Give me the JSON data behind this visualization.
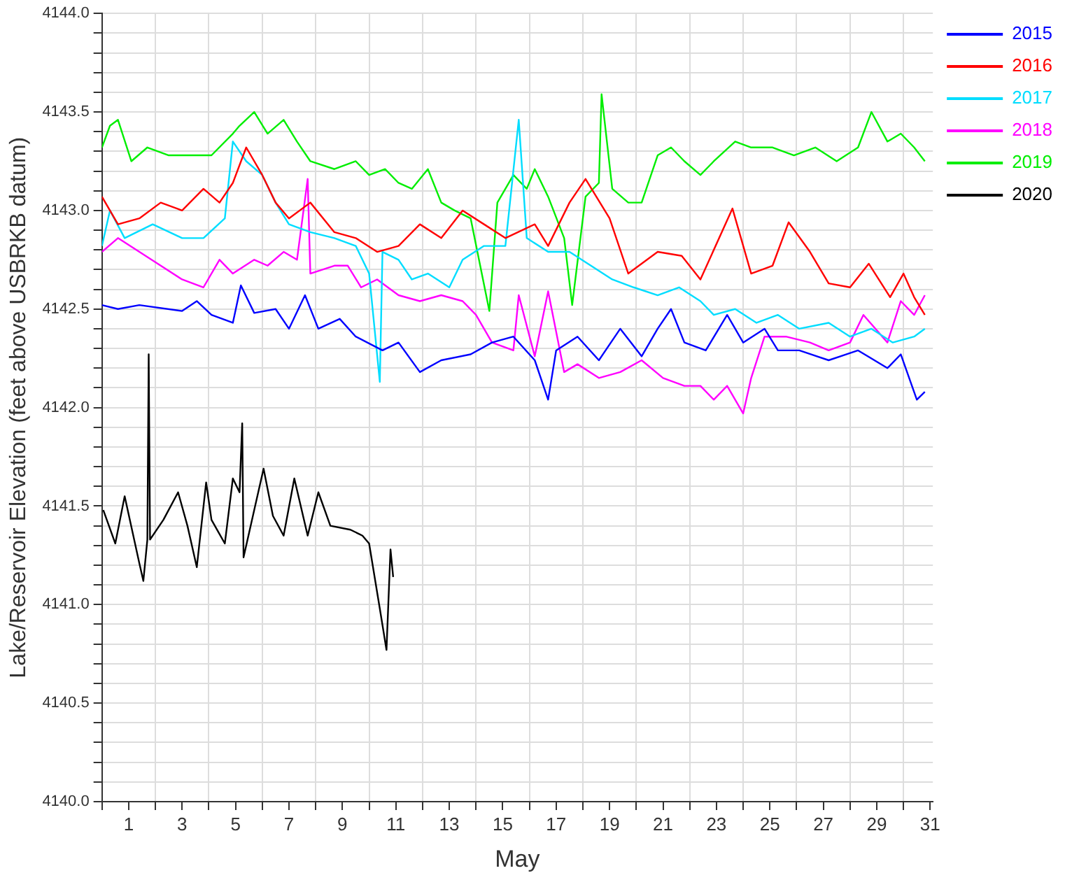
{
  "chart_data": {
    "type": "line",
    "xlabel": "May",
    "ylabel": "Lake/Reservoir Elevation (feet above USBRKB datum)",
    "xlim": [
      0,
      31.1
    ],
    "xticks": [
      {
        "value": 0,
        "label": null
      },
      1,
      {
        "value": 2,
        "label": null
      },
      3,
      {
        "value": 4,
        "label": null
      },
      5,
      {
        "value": 6,
        "label": null
      },
      7,
      {
        "value": 8,
        "label": null
      },
      9,
      {
        "value": 10,
        "label": null
      },
      11,
      {
        "value": 12,
        "label": null
      },
      13,
      {
        "value": 14,
        "label": null
      },
      15,
      {
        "value": 16,
        "label": null
      },
      17,
      {
        "value": 18,
        "label": null
      },
      19,
      {
        "value": 20,
        "label": null
      },
      21,
      {
        "value": 22,
        "label": null
      },
      23,
      {
        "value": 24,
        "label": null
      },
      25,
      {
        "value": 26,
        "label": null
      },
      27,
      {
        "value": 28,
        "label": null
      },
      29,
      {
        "value": 30,
        "label": null
      },
      31
    ],
    "ylim": [
      4140,
      4144
    ],
    "yticks": [
      {
        "value": 4140,
        "label": "4140.0"
      },
      {
        "value": 4140.1,
        "label": null
      },
      {
        "value": 4140.2,
        "label": null
      },
      {
        "value": 4140.3,
        "label": null
      },
      {
        "value": 4140.4,
        "label": null
      },
      {
        "value": 4140.5,
        "label": "4140.5"
      },
      {
        "value": 4140.6,
        "label": null
      },
      {
        "value": 4140.7,
        "label": null
      },
      {
        "value": 4140.8,
        "label": null
      },
      {
        "value": 4140.9,
        "label": null
      },
      {
        "value": 4141,
        "label": "4141.0"
      },
      {
        "value": 4141.1,
        "label": null
      },
      {
        "value": 4141.2,
        "label": null
      },
      {
        "value": 4141.3,
        "label": null
      },
      {
        "value": 4141.4,
        "label": null
      },
      {
        "value": 4141.5,
        "label": "4141.5"
      },
      {
        "value": 4141.6,
        "label": null
      },
      {
        "value": 4141.7,
        "label": null
      },
      {
        "value": 4141.8,
        "label": null
      },
      {
        "value": 4141.9,
        "label": null
      },
      {
        "value": 4142,
        "label": "4142.0"
      },
      {
        "value": 4142.1,
        "label": null
      },
      {
        "value": 4142.2,
        "label": null
      },
      {
        "value": 4142.3,
        "label": null
      },
      {
        "value": 4142.4,
        "label": null
      },
      {
        "value": 4142.5,
        "label": "4142.5"
      },
      {
        "value": 4142.6,
        "label": null
      },
      {
        "value": 4142.7,
        "label": null
      },
      {
        "value": 4142.8,
        "label": null
      },
      {
        "value": 4142.9,
        "label": null
      },
      {
        "value": 4143,
        "label": "4143.0"
      },
      {
        "value": 4143.1,
        "label": null
      },
      {
        "value": 4143.2,
        "label": null
      },
      {
        "value": 4143.3,
        "label": null
      },
      {
        "value": 4143.4,
        "label": null
      },
      {
        "value": 4143.5,
        "label": "4143.5"
      },
      {
        "value": 4143.6,
        "label": null
      },
      {
        "value": 4143.7,
        "label": null
      },
      {
        "value": 4143.8,
        "label": null
      },
      {
        "value": 4143.9,
        "label": null
      },
      {
        "value": 4144,
        "label": "4144.0"
      }
    ],
    "grid": true,
    "legend": "top right",
    "marker": "none",
    "line_style": "solid",
    "series": [
      {
        "name": "2015",
        "color": "#0000ff",
        "x": [
          0,
          0.6,
          1.4,
          3.0,
          3.55,
          4.1,
          4.9,
          5.2,
          5.7,
          6.5,
          7.0,
          7.6,
          8.1,
          8.9,
          9.5,
          10.5,
          11.1,
          11.9,
          12.7,
          13.8,
          14.6,
          15.4,
          16.2,
          16.7,
          17.0,
          17.8,
          18.6,
          19.4,
          20.2,
          20.8,
          21.3,
          21.8,
          22.6,
          23.4,
          24.0,
          24.8,
          25.3,
          26.1,
          27.2,
          28.3,
          29.4,
          29.9,
          30.5,
          30.8
        ],
        "values": [
          4142.52,
          4142.5,
          4142.52,
          4142.49,
          4142.54,
          4142.47,
          4142.43,
          4142.62,
          4142.48,
          4142.5,
          4142.4,
          4142.57,
          4142.4,
          4142.45,
          4142.36,
          4142.29,
          4142.33,
          4142.18,
          4142.24,
          4142.27,
          4142.33,
          4142.36,
          4142.24,
          4142.04,
          4142.29,
          4142.36,
          4142.24,
          4142.4,
          4142.26,
          4142.4,
          4142.5,
          4142.33,
          4142.29,
          4142.47,
          4142.33,
          4142.4,
          4142.29,
          4142.29,
          4142.24,
          4142.29,
          4142.2,
          4142.27,
          4142.04,
          4142.08
        ]
      },
      {
        "name": "2016",
        "color": "#ff0000",
        "x": [
          0,
          0.6,
          1.4,
          2.2,
          3.0,
          3.8,
          4.4,
          4.9,
          5.4,
          6.0,
          6.5,
          7.0,
          7.8,
          8.7,
          9.5,
          10.3,
          11.1,
          11.9,
          12.7,
          13.5,
          14.3,
          15.1,
          16.2,
          16.7,
          17.5,
          18.1,
          19.0,
          19.7,
          20.8,
          21.7,
          22.4,
          23.6,
          24.3,
          25.1,
          25.7,
          26.5,
          27.2,
          28.0,
          28.7,
          29.5,
          30.0,
          30.4,
          30.8
        ],
        "values": [
          4143.07,
          4142.93,
          4142.96,
          4143.04,
          4143.0,
          4143.11,
          4143.04,
          4143.14,
          4143.32,
          4143.18,
          4143.04,
          4142.96,
          4143.04,
          4142.89,
          4142.86,
          4142.79,
          4142.82,
          4142.93,
          4142.86,
          4143.0,
          4142.93,
          4142.86,
          4142.93,
          4142.82,
          4143.04,
          4143.16,
          4142.96,
          4142.68,
          4142.79,
          4142.77,
          4142.65,
          4143.01,
          4142.68,
          4142.72,
          4142.94,
          4142.79,
          4142.63,
          4142.61,
          4142.73,
          4142.56,
          4142.68,
          4142.56,
          4142.47
        ]
      },
      {
        "name": "2017",
        "color": "#00ddff",
        "x": [
          0,
          0.3,
          0.85,
          1.9,
          3.0,
          3.8,
          4.6,
          4.9,
          5.4,
          6.0,
          6.5,
          7.0,
          7.8,
          8.7,
          9.5,
          10.0,
          10.4,
          10.5,
          11.1,
          11.6,
          12.2,
          13.0,
          13.5,
          14.3,
          15.1,
          15.6,
          15.9,
          16.7,
          17.5,
          18.3,
          19.1,
          19.9,
          20.8,
          21.6,
          22.4,
          22.9,
          23.7,
          24.5,
          25.3,
          26.1,
          27.2,
          28.0,
          28.8,
          29.6,
          30.4,
          30.8
        ],
        "values": [
          4142.82,
          4143.0,
          4142.86,
          4142.93,
          4142.86,
          4142.86,
          4142.96,
          4143.35,
          4143.25,
          4143.18,
          4143.04,
          4142.93,
          4142.89,
          4142.86,
          4142.82,
          4142.68,
          4142.13,
          4142.79,
          4142.75,
          4142.65,
          4142.68,
          4142.61,
          4142.75,
          4142.82,
          4142.82,
          4143.46,
          4142.86,
          4142.79,
          4142.79,
          4142.72,
          4142.65,
          4142.61,
          4142.57,
          4142.61,
          4142.54,
          4142.47,
          4142.5,
          4142.43,
          4142.47,
          4142.4,
          4142.43,
          4142.36,
          4142.4,
          4142.33,
          4142.36,
          4142.4
        ]
      },
      {
        "name": "2018",
        "color": "#ff00ff",
        "x": [
          0,
          0.6,
          1.4,
          2.2,
          3.0,
          3.8,
          4.4,
          4.9,
          5.7,
          6.2,
          6.8,
          7.3,
          7.7,
          7.8,
          8.7,
          9.2,
          9.7,
          10.3,
          11.1,
          11.9,
          12.7,
          13.5,
          14.0,
          14.6,
          15.4,
          15.6,
          16.2,
          16.7,
          17.3,
          17.8,
          18.6,
          19.4,
          20.2,
          21.0,
          21.8,
          22.4,
          22.9,
          23.4,
          24.0,
          24.3,
          24.8,
          25.6,
          26.5,
          27.2,
          28.0,
          28.5,
          29.4,
          29.9,
          30.4,
          30.8
        ],
        "values": [
          4142.79,
          4142.86,
          4142.79,
          4142.72,
          4142.65,
          4142.61,
          4142.75,
          4142.68,
          4142.75,
          4142.72,
          4142.79,
          4142.75,
          4143.16,
          4142.68,
          4142.72,
          4142.72,
          4142.61,
          4142.65,
          4142.57,
          4142.54,
          4142.57,
          4142.54,
          4142.47,
          4142.33,
          4142.29,
          4142.57,
          4142.26,
          4142.59,
          4142.18,
          4142.22,
          4142.15,
          4142.18,
          4142.24,
          4142.15,
          4142.11,
          4142.11,
          4142.04,
          4142.11,
          4141.97,
          4142.15,
          4142.36,
          4142.36,
          4142.33,
          4142.29,
          4142.33,
          4142.47,
          4142.33,
          4142.54,
          4142.47,
          4142.57
        ]
      },
      {
        "name": "2019",
        "color": "#00ee00",
        "x": [
          0,
          0.3,
          0.6,
          1.1,
          1.7,
          2.5,
          3.2,
          4.1,
          4.9,
          5.15,
          5.7,
          6.2,
          6.8,
          7.3,
          7.8,
          8.7,
          9.5,
          10.0,
          10.6,
          11.1,
          11.6,
          12.2,
          12.7,
          13.2,
          13.8,
          14.5,
          14.8,
          15.4,
          15.9,
          16.2,
          16.7,
          17.3,
          17.6,
          18.1,
          18.6,
          18.7,
          19.1,
          19.7,
          20.2,
          20.8,
          21.3,
          21.8,
          22.4,
          22.9,
          23.7,
          24.3,
          25.1,
          25.9,
          26.7,
          27.5,
          28.3,
          28.8,
          29.4,
          29.9,
          30.4,
          30.8
        ],
        "values": [
          4143.32,
          4143.43,
          4143.46,
          4143.25,
          4143.32,
          4143.28,
          4143.28,
          4143.28,
          4143.39,
          4143.43,
          4143.5,
          4143.39,
          4143.46,
          4143.35,
          4143.25,
          4143.21,
          4143.25,
          4143.18,
          4143.21,
          4143.14,
          4143.11,
          4143.21,
          4143.04,
          4143.0,
          4142.96,
          4142.49,
          4143.04,
          4143.18,
          4143.11,
          4143.21,
          4143.07,
          4142.86,
          4142.52,
          4143.07,
          4143.14,
          4143.59,
          4143.11,
          4143.04,
          4143.04,
          4143.28,
          4143.32,
          4143.25,
          4143.18,
          4143.25,
          4143.35,
          4143.32,
          4143.32,
          4143.28,
          4143.32,
          4143.25,
          4143.32,
          4143.5,
          4143.35,
          4143.39,
          4143.32,
          4143.25
        ]
      },
      {
        "name": "2020",
        "color": "#000000",
        "x": [
          0.05,
          0.5,
          0.85,
          1.4,
          1.55,
          1.7,
          1.75,
          1.8,
          2.3,
          2.85,
          3.2,
          3.55,
          3.9,
          4.1,
          4.6,
          4.9,
          5.15,
          5.25,
          5.3,
          5.7,
          6.05,
          6.4,
          6.8,
          7.2,
          7.7,
          8.1,
          8.55,
          9.3,
          9.75,
          10.0,
          10.4,
          10.65,
          10.8,
          10.9
        ],
        "values": [
          4141.48,
          4141.31,
          4141.55,
          4141.21,
          4141.12,
          4141.33,
          4142.27,
          4141.33,
          4141.43,
          4141.57,
          4141.4,
          4141.19,
          4141.62,
          4141.43,
          4141.31,
          4141.64,
          4141.57,
          4141.92,
          4141.24,
          4141.48,
          4141.69,
          4141.45,
          4141.35,
          4141.64,
          4141.35,
          4141.57,
          4141.4,
          4141.38,
          4141.35,
          4141.31,
          4140.98,
          4140.77,
          4141.28,
          4141.14
        ]
      }
    ]
  }
}
